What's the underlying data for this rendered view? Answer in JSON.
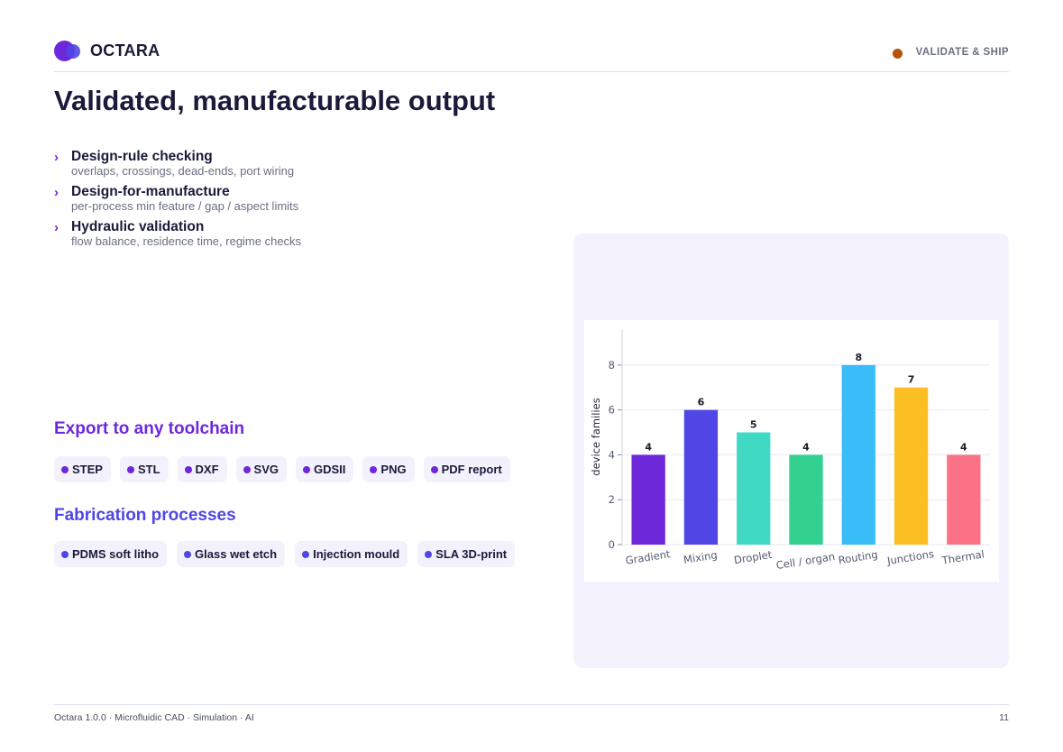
{
  "header": {
    "brand": "OCTARA",
    "section_tag": "VALIDATE & SHIP",
    "tag_color": "#b45309",
    "logo_icon": "octara-logo-icon"
  },
  "title": "Validated, manufacturable output",
  "bullets": [
    {
      "title": "Design-rule checking",
      "subtitle": "overlaps, crossings, dead-ends, port wiring"
    },
    {
      "title": "Design-for-manufacture",
      "subtitle": "per-process min feature / gap / aspect limits"
    },
    {
      "title": "Hydraulic validation",
      "subtitle": "flow balance, residence time, regime checks"
    }
  ],
  "export": {
    "heading": "Export to any toolchain",
    "chips": [
      "STEP",
      "STL",
      "DXF",
      "SVG",
      "GDSII",
      "PNG",
      "PDF report"
    ],
    "color": "#6d28d9"
  },
  "fabrication": {
    "heading": "Fabrication processes",
    "chips": [
      "PDMS soft litho",
      "Glass wet etch",
      "Injection mould",
      "SLA 3D-print"
    ],
    "color": "#4f46e5"
  },
  "chart_data": {
    "type": "bar",
    "categories": [
      "Gradient",
      "Mixing",
      "Droplet",
      "Cell / organ",
      "Routing",
      "Junctions",
      "Thermal"
    ],
    "values": [
      4,
      6,
      5,
      4,
      8,
      7,
      4
    ],
    "colors": [
      "#6d28d9",
      "#4f46e5",
      "#40d9c4",
      "#33d190",
      "#38bdf8",
      "#fbbf24",
      "#fb7185"
    ],
    "title": "",
    "xlabel": "",
    "ylabel": "device families",
    "ylim": [
      0,
      9.6
    ],
    "yticks": [
      0,
      2,
      4,
      6,
      8
    ],
    "grid": true,
    "data_labels": true
  },
  "footer": {
    "left": "Octara 1.0.0  ·  Microfluidic CAD · Simulation · AI",
    "page": "11"
  }
}
